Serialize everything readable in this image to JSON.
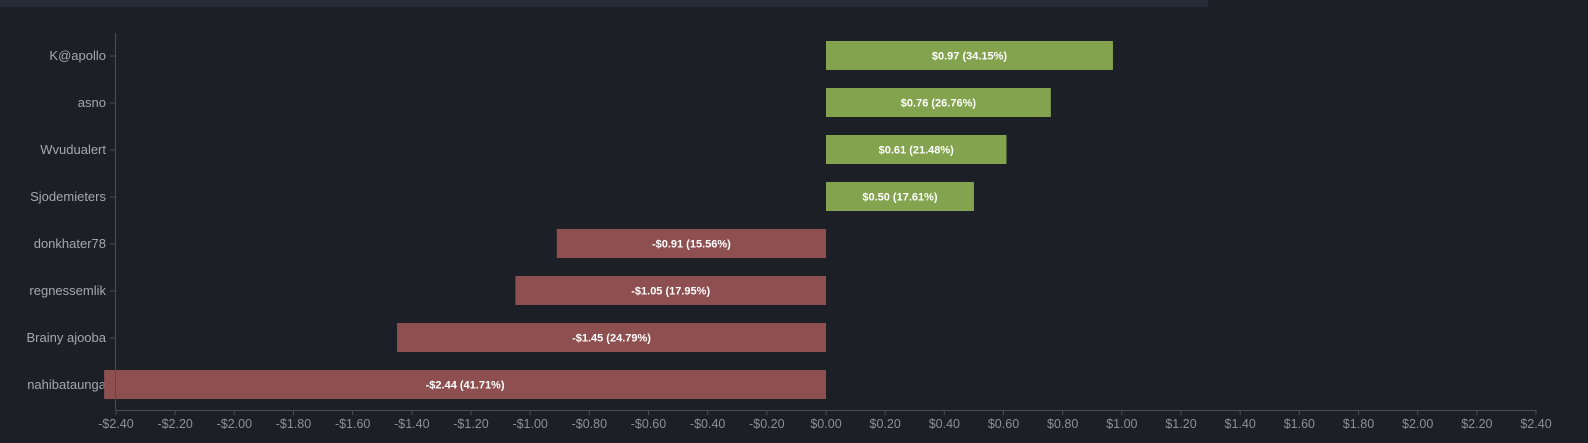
{
  "chart_data": {
    "type": "bar",
    "orientation": "horizontal",
    "title": "",
    "xlabel": "",
    "ylabel": "",
    "xlim": [
      -2.4,
      2.4
    ],
    "x_ticks": [
      -2.4,
      -2.2,
      -2.0,
      -1.8,
      -1.6,
      -1.4,
      -1.2,
      -1.0,
      -0.8,
      -0.6,
      -0.4,
      -0.2,
      0.0,
      0.2,
      0.4,
      0.6,
      0.8,
      1.0,
      1.2,
      1.4,
      1.6,
      1.8,
      2.0,
      2.2,
      2.4
    ],
    "x_tick_labels": [
      "-$2.40",
      "-$2.20",
      "-$2.00",
      "-$1.80",
      "-$1.60",
      "-$1.40",
      "-$1.20",
      "-$1.00",
      "-$0.80",
      "-$0.60",
      "-$0.40",
      "-$0.20",
      "$0.00",
      "$0.20",
      "$0.40",
      "$0.60",
      "$0.80",
      "$1.00",
      "$1.20",
      "$1.40",
      "$1.60",
      "$1.80",
      "$2.00",
      "$2.20",
      "$2.40"
    ],
    "categories": [
      "K@apollo",
      "asno",
      "Wvudualert",
      "Sjodemieters",
      "donkhater78",
      "regnessemlik",
      "Brainy ajooba",
      "nahibataunga"
    ],
    "values": [
      0.97,
      0.76,
      0.61,
      0.5,
      -0.91,
      -1.05,
      -1.45,
      -2.44
    ],
    "data_labels": [
      "$0.97 (34.15%)",
      "$0.76 (26.76%)",
      "$0.61 (21.48%)",
      "$0.50 (17.61%)",
      "-$0.91 (15.56%)",
      "-$1.05 (17.95%)",
      "-$1.45 (24.79%)",
      "-$2.44 (41.71%)"
    ],
    "colors": {
      "positive": "#83a34e",
      "negative": "#8e4f51"
    },
    "grid": false,
    "legend": "none"
  }
}
